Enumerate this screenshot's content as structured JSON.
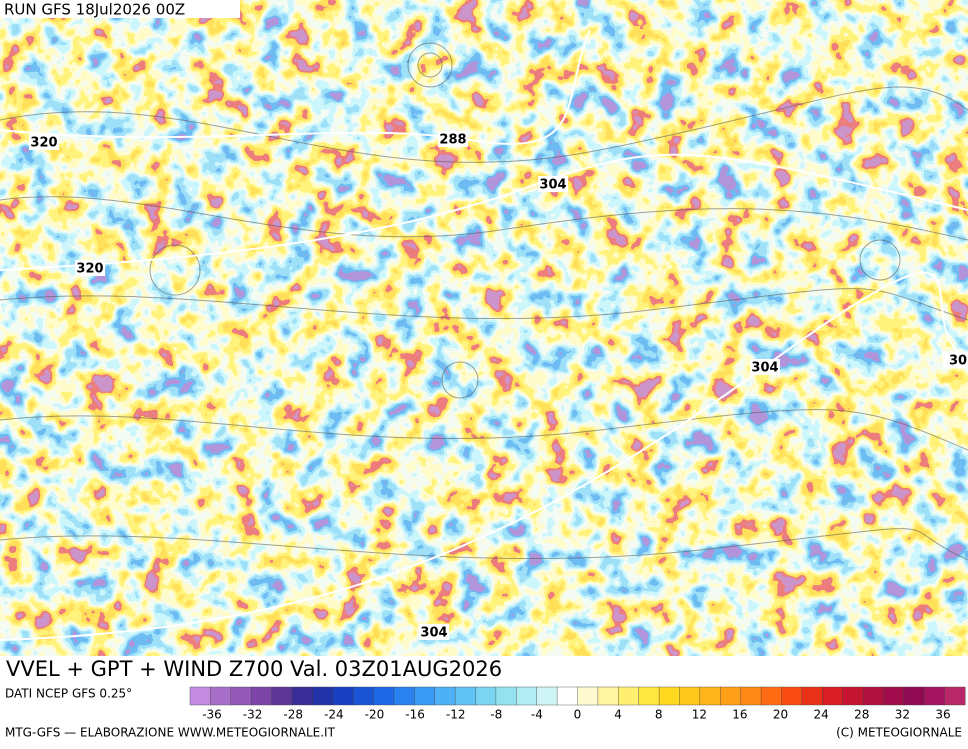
{
  "header": {
    "run": "RUN GFS 18Jul2026 00Z"
  },
  "map": {
    "contour_labels": [
      "320",
      "288",
      "304",
      "320",
      "304",
      "30",
      "304"
    ]
  },
  "footer": {
    "title": "VVEL + GPT + WIND Z700 Val. 03Z01AUG2026",
    "source": "DATI NCEP GFS 0.25°",
    "credit": "MTG-GFS — ELABORAZIONE WWW.METEOGIORNALE.IT",
    "copyright": "(C) METEOGIORNALE"
  },
  "colorbar": {
    "ticks": [
      -36,
      -32,
      -28,
      -24,
      -20,
      -16,
      -12,
      -8,
      -4,
      0,
      4,
      8,
      12,
      16,
      20,
      24,
      28,
      32,
      36
    ],
    "colors": [
      "#c28be0",
      "#a86fc8",
      "#9458b8",
      "#7d45a8",
      "#5e3896",
      "#3a2c96",
      "#2232a8",
      "#1840c0",
      "#1a55d6",
      "#1e6ae6",
      "#2a82f0",
      "#3a9af4",
      "#4eb0f6",
      "#62c4f4",
      "#7ad4f2",
      "#94e2f0",
      "#b0ecf2",
      "#cef4f6",
      "#ffffff",
      "#fffad0",
      "#fff4a0",
      "#ffee70",
      "#ffe640",
      "#ffd820",
      "#ffc81c",
      "#ffb61a",
      "#ffa018",
      "#ff8816",
      "#ff6c14",
      "#f84c14",
      "#e83218",
      "#d81e24",
      "#c41432",
      "#b01040",
      "#a00c4c",
      "#900a52",
      "#a4145e",
      "#b82868"
    ]
  }
}
